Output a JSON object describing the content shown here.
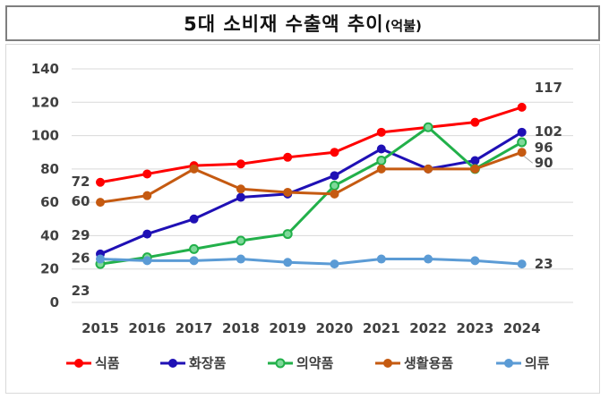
{
  "chart_data": {
    "type": "line",
    "title": "5대 소비재 수출액 추이",
    "unit": "(억불)",
    "categories": [
      "2015",
      "2016",
      "2017",
      "2018",
      "2019",
      "2020",
      "2021",
      "2022",
      "2023",
      "2024"
    ],
    "ylim": [
      0,
      140
    ],
    "yticks": [
      0,
      20,
      40,
      60,
      80,
      100,
      120,
      140
    ],
    "series": [
      {
        "name": "식품",
        "color": "#ff0000",
        "values": [
          72,
          77,
          82,
          83,
          87,
          90,
          102,
          105,
          108,
          117
        ]
      },
      {
        "name": "화장품",
        "color": "#1f10b5",
        "values": [
          29,
          41,
          50,
          63,
          65,
          76,
          92,
          80,
          85,
          102
        ]
      },
      {
        "name": "의약품",
        "color": "#22b04a",
        "values": [
          23,
          27,
          32,
          37,
          41,
          70,
          85,
          105,
          80,
          96
        ]
      },
      {
        "name": "생활용품",
        "color": "#c55a11",
        "values": [
          60,
          64,
          80,
          68,
          66,
          65,
          80,
          80,
          80,
          90
        ]
      },
      {
        "name": "의류",
        "color": "#5b9bd5",
        "values": [
          26,
          25,
          25,
          26,
          24,
          23,
          26,
          26,
          25,
          23
        ]
      }
    ],
    "data_labels": [
      {
        "text": "72",
        "series": 0,
        "index": 0
      },
      {
        "text": "60",
        "series": 3,
        "index": 0
      },
      {
        "text": "29",
        "series": 1,
        "index": 0
      },
      {
        "text": "26",
        "series": 4,
        "index": 0
      },
      {
        "text": "23",
        "series": 2,
        "index": 0
      },
      {
        "text": "117",
        "series": 0,
        "index": 9
      },
      {
        "text": "102",
        "series": 1,
        "index": 9
      },
      {
        "text": "96",
        "series": 2,
        "index": 9
      },
      {
        "text": "90",
        "series": 3,
        "index": 9
      },
      {
        "text": "23",
        "series": 4,
        "index": 9
      }
    ],
    "legend_position": "bottom"
  }
}
